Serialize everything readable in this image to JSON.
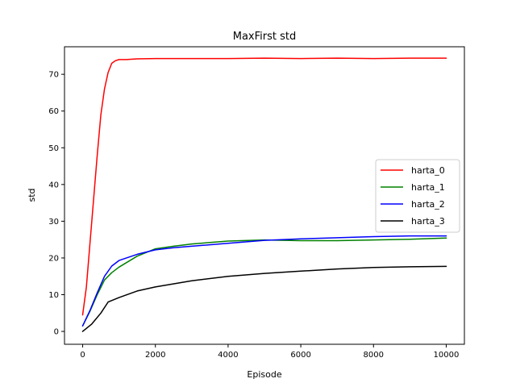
{
  "chart_data": {
    "type": "line",
    "title": "MaxFirst std",
    "xlabel": "Episode",
    "ylabel": "std",
    "xlim": [
      -500,
      10500
    ],
    "ylim": [
      -3.5,
      77.5
    ],
    "xticks": [
      0,
      2000,
      4000,
      6000,
      8000,
      10000
    ],
    "yticks": [
      0,
      10,
      20,
      30,
      40,
      50,
      60,
      70
    ],
    "grid": false,
    "legend_position": "center-right",
    "series": [
      {
        "name": "harta_0",
        "color": "#ff0000",
        "points": [
          [
            0,
            4.5
          ],
          [
            100,
            12
          ],
          [
            200,
            24
          ],
          [
            300,
            36
          ],
          [
            400,
            48
          ],
          [
            500,
            59
          ],
          [
            600,
            66
          ],
          [
            700,
            70.5
          ],
          [
            800,
            73
          ],
          [
            900,
            73.7
          ],
          [
            1000,
            74
          ],
          [
            1200,
            74
          ],
          [
            1500,
            74.2
          ],
          [
            2000,
            74.3
          ],
          [
            3000,
            74.3
          ],
          [
            4000,
            74.3
          ],
          [
            5000,
            74.4
          ],
          [
            6000,
            74.3
          ],
          [
            7000,
            74.4
          ],
          [
            8000,
            74.3
          ],
          [
            9000,
            74.4
          ],
          [
            10000,
            74.4
          ]
        ]
      },
      {
        "name": "harta_1",
        "color": "#008000",
        "points": [
          [
            0,
            1.5
          ],
          [
            200,
            5.5
          ],
          [
            400,
            10
          ],
          [
            600,
            14
          ],
          [
            800,
            16
          ],
          [
            1000,
            17.5
          ],
          [
            1500,
            20.5
          ],
          [
            2000,
            22.5
          ],
          [
            2500,
            23.2
          ],
          [
            3000,
            23.8
          ],
          [
            4000,
            24.6
          ],
          [
            5000,
            24.9
          ],
          [
            6000,
            24.7
          ],
          [
            7000,
            24.7
          ],
          [
            8000,
            24.9
          ],
          [
            9000,
            25.1
          ],
          [
            10000,
            25.4
          ]
        ]
      },
      {
        "name": "harta_2",
        "color": "#0000ff",
        "points": [
          [
            0,
            1.5
          ],
          [
            200,
            5.7
          ],
          [
            400,
            10.5
          ],
          [
            600,
            15
          ],
          [
            800,
            17.8
          ],
          [
            1000,
            19.3
          ],
          [
            1500,
            21
          ],
          [
            2000,
            22.2
          ],
          [
            2500,
            22.8
          ],
          [
            3000,
            23.2
          ],
          [
            4000,
            24
          ],
          [
            5000,
            24.8
          ],
          [
            6000,
            25.2
          ],
          [
            7000,
            25.5
          ],
          [
            8000,
            25.8
          ],
          [
            9000,
            26
          ],
          [
            10000,
            26
          ]
        ]
      },
      {
        "name": "harta_3",
        "color": "#000000",
        "points": [
          [
            0,
            0
          ],
          [
            250,
            2
          ],
          [
            500,
            5
          ],
          [
            700,
            8
          ],
          [
            1000,
            9.2
          ],
          [
            1500,
            11
          ],
          [
            2000,
            12.1
          ],
          [
            3000,
            13.8
          ],
          [
            4000,
            15
          ],
          [
            5000,
            15.8
          ],
          [
            6000,
            16.4
          ],
          [
            7000,
            17
          ],
          [
            8000,
            17.4
          ],
          [
            9000,
            17.6
          ],
          [
            10000,
            17.7
          ]
        ]
      }
    ]
  }
}
